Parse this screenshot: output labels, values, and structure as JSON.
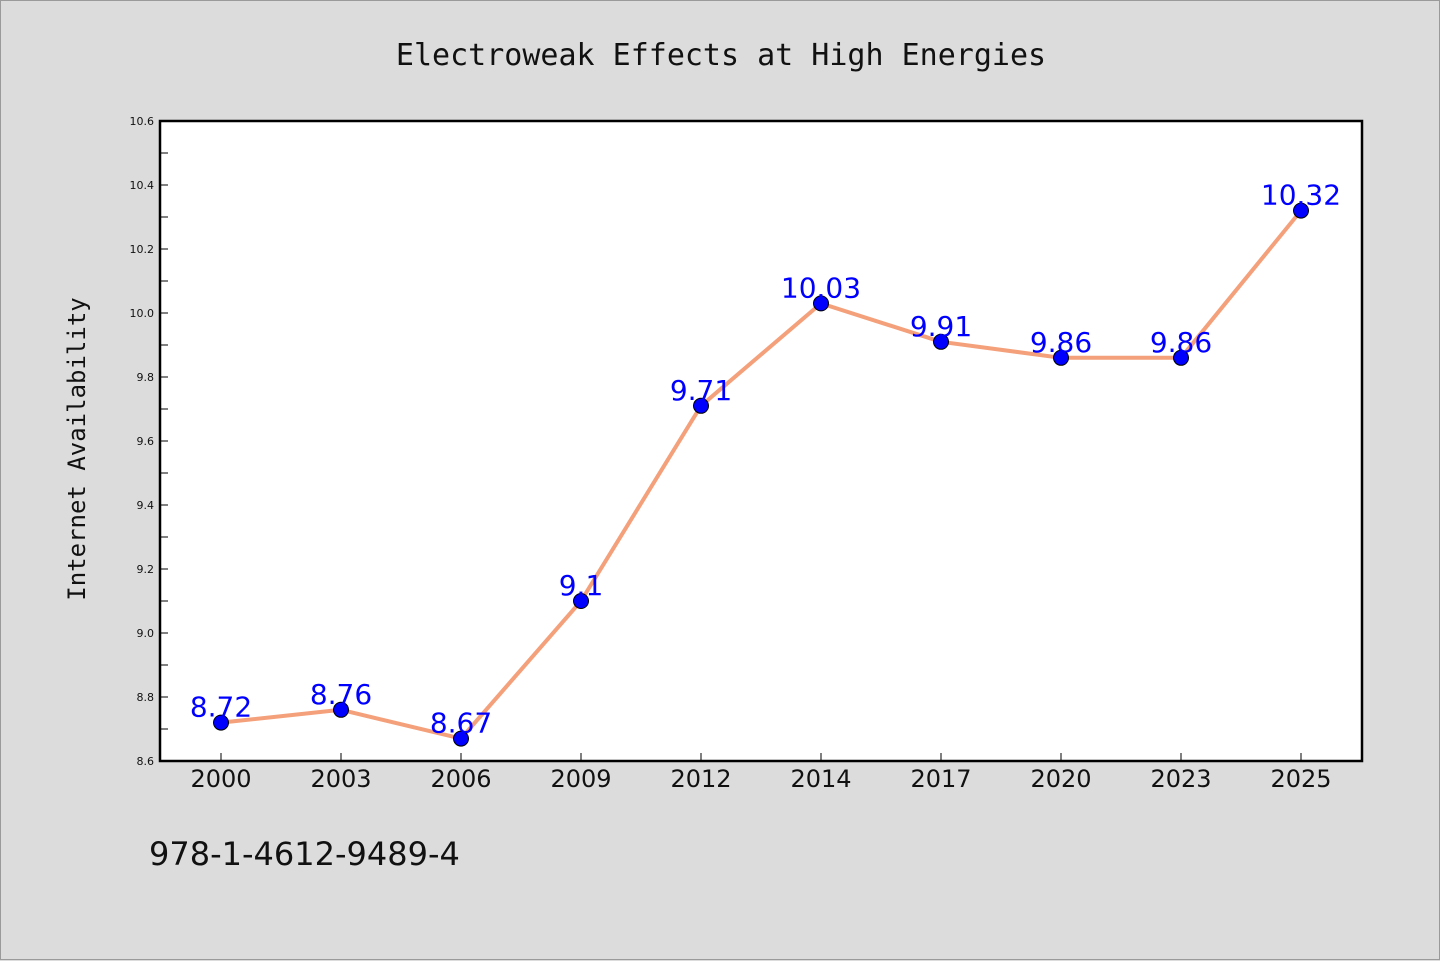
{
  "chart_data": {
    "type": "line",
    "title": "Electroweak Effects at High Energies",
    "xlabel": "",
    "ylabel": "Internet Availability",
    "categories": [
      "2000",
      "2003",
      "2006",
      "2009",
      "2012",
      "2014",
      "2017",
      "2020",
      "2023",
      "2025"
    ],
    "series": [
      {
        "values": [
          8.72,
          8.76,
          8.67,
          9.1,
          9.71,
          10.03,
          9.91,
          9.86,
          9.86,
          10.32
        ],
        "data_labels": [
          "8.72",
          "8.76",
          "8.67",
          "9.1",
          "9.71",
          "10.03",
          "9.91",
          "9.86",
          "9.86",
          "10.32"
        ],
        "line_color": "#f4a07a",
        "marker_color": "#0000ff"
      }
    ],
    "ylim": [
      8.6,
      10.6
    ],
    "yticks": [
      "8.6",
      "8.8",
      "9.0",
      "9.2",
      "9.4",
      "9.6",
      "9.8",
      "10.0",
      "10.2",
      "10.4",
      "10.6"
    ],
    "grid": false,
    "label_color": "#0000ff"
  },
  "footer": {
    "text": "978-1-4612-9489-4"
  }
}
